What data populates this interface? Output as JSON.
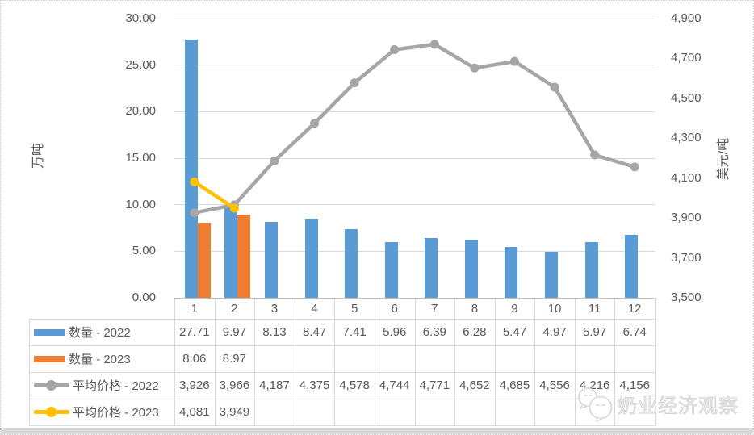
{
  "watermark": {
    "text": "奶业经济观察",
    "icon": "wechat-icon"
  },
  "colors": {
    "bar_2022": "#5B9BD5",
    "bar_2023": "#ED7D31",
    "line_2022": "#A6A6A6",
    "line_2023": "#FFC000",
    "text": "#595959",
    "gridline": "#D9D9D9",
    "table_border": "#D9D9D9",
    "bottom_strip": "#D8D8D8"
  },
  "chart_data": {
    "type": "combo-bar-line",
    "categories": [
      "1",
      "2",
      "3",
      "4",
      "5",
      "6",
      "7",
      "8",
      "9",
      "10",
      "11",
      "12"
    ],
    "left_axis": {
      "title": "万吨",
      "min": 0,
      "max": 30,
      "tick_labels": [
        "30.00",
        "25.00",
        "20.00",
        "15.00",
        "10.00",
        "5.00",
        "0.00"
      ]
    },
    "right_axis": {
      "title": "美元/吨",
      "min": 3500,
      "max": 4900,
      "tick_labels": [
        "4,900",
        "4,700",
        "4,500",
        "4,300",
        "4,100",
        "3,900",
        "3,700",
        "3,500"
      ]
    },
    "grid": "horizontal-left-axis",
    "legend_position": "data-table-left",
    "series": [
      {
        "name": "数量 - 2022",
        "type": "bar",
        "axis": "left",
        "color": "#5B9BD5",
        "values": [
          27.71,
          9.97,
          8.13,
          8.47,
          7.41,
          5.96,
          6.39,
          6.28,
          5.47,
          4.97,
          5.97,
          6.74
        ],
        "display": [
          "27.71",
          "9.97",
          "8.13",
          "8.47",
          "7.41",
          "5.96",
          "6.39",
          "6.28",
          "5.47",
          "4.97",
          "5.97",
          "6.74"
        ]
      },
      {
        "name": "数量 - 2023",
        "type": "bar",
        "axis": "left",
        "color": "#ED7D31",
        "values": [
          8.06,
          8.97,
          null,
          null,
          null,
          null,
          null,
          null,
          null,
          null,
          null,
          null
        ],
        "display": [
          "8.06",
          "8.97",
          "",
          "",
          "",
          "",
          "",
          "",
          "",
          "",
          "",
          ""
        ]
      },
      {
        "name": "平均价格 - 2022",
        "type": "line",
        "axis": "right",
        "color": "#A6A6A6",
        "values": [
          3926,
          3966,
          4187,
          4375,
          4578,
          4744,
          4771,
          4652,
          4685,
          4556,
          4216,
          4156
        ],
        "display": [
          "3,926",
          "3,966",
          "4,187",
          "4,375",
          "4,578",
          "4,744",
          "4,771",
          "4,652",
          "4,685",
          "4,556",
          "4,216",
          "4,156"
        ]
      },
      {
        "name": "平均价格 - 2023",
        "type": "line",
        "axis": "right",
        "color": "#FFC000",
        "values": [
          4081,
          3949,
          null,
          null,
          null,
          null,
          null,
          null,
          null,
          null,
          null,
          null
        ],
        "display": [
          "4,081",
          "3,949",
          "",
          "",
          "",
          "",
          "",
          "",
          "",
          "",
          "",
          ""
        ]
      }
    ]
  }
}
